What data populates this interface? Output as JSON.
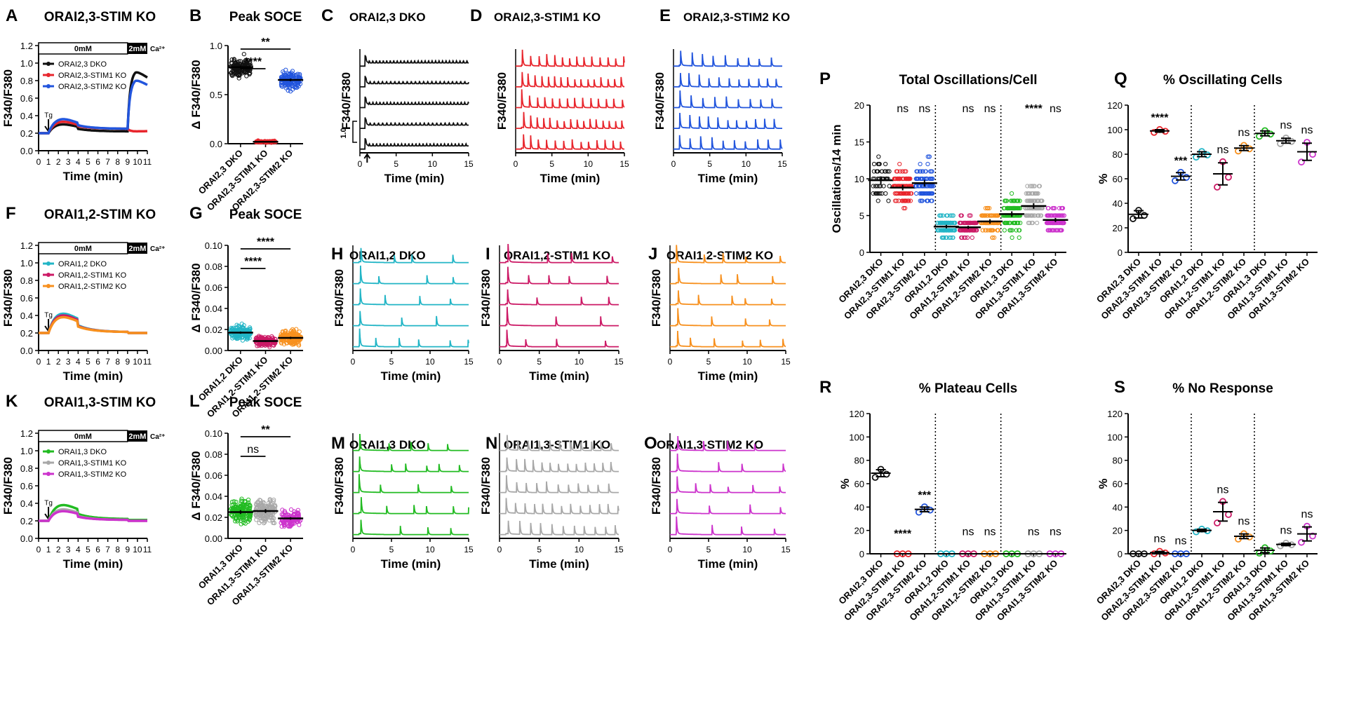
{
  "colors": {
    "black": "#111111",
    "red": "#e8262d",
    "blue": "#2255dd",
    "cyan": "#22b5c6",
    "magenta": "#cc1a66",
    "orange": "#f7901e",
    "green": "#22bb22",
    "gray": "#a8a8a8",
    "violet": "#cc33cc"
  },
  "chart_data": [
    {
      "id": "A",
      "type": "line",
      "letter": "A",
      "title": "ORAI2,3-STIM KO",
      "ylabel": "F340/F380",
      "xlabel": "Time (min)",
      "xlim": [
        0,
        11
      ],
      "ylim": [
        0,
        1.2
      ],
      "yticks": [
        "0.0",
        "0.2",
        "0.4",
        "0.6",
        "0.8",
        "1.0",
        "1.2"
      ],
      "xticks": [
        "0",
        "1",
        "2",
        "3",
        "4",
        "5",
        "6",
        "7",
        "8",
        "9",
        "10",
        "11"
      ],
      "bath": {
        "low": "0mM",
        "high": "2mM",
        "ion": "Ca²⁺"
      },
      "marker": "Tg",
      "series": [
        {
          "name": "ORAI2,3 DKO",
          "color": "black",
          "peak": 0.3,
          "tail": 0.22,
          "readd": 0.92
        },
        {
          "name": "ORAI2,3-STIM1 KO",
          "color": "red",
          "peak": 0.33,
          "tail": 0.25,
          "readd": 0.22
        },
        {
          "name": "ORAI2,3-STIM2 KO",
          "color": "blue",
          "peak": 0.36,
          "tail": 0.25,
          "readd": 0.82
        }
      ]
    },
    {
      "id": "F",
      "type": "line",
      "letter": "F",
      "title": "ORAI1,2-STIM KO",
      "ylabel": "F340/F380",
      "xlabel": "Time (min)",
      "xlim": [
        0,
        11
      ],
      "ylim": [
        0,
        1.2
      ],
      "yticks": [
        "0.0",
        "0.2",
        "0.4",
        "0.6",
        "0.8",
        "1.0",
        "1.2"
      ],
      "xticks": [
        "0",
        "1",
        "2",
        "3",
        "4",
        "5",
        "6",
        "7",
        "8",
        "9",
        "10",
        "11"
      ],
      "bath": {
        "low": "0mM",
        "high": "2mM",
        "ion": "Ca²⁺"
      },
      "marker": "Tg",
      "series": [
        {
          "name": "ORAI1,2 DKO",
          "color": "cyan",
          "peak": 0.42,
          "tail": 0.21
        },
        {
          "name": "ORAI1,2-STIM1 KO",
          "color": "magenta",
          "peak": 0.4,
          "tail": 0.21
        },
        {
          "name": "ORAI1,2-STIM2 KO",
          "color": "orange",
          "peak": 0.38,
          "tail": 0.21
        }
      ]
    },
    {
      "id": "K",
      "type": "line",
      "letter": "K",
      "title": "ORAI1,3-STIM KO",
      "ylabel": "F340/F380",
      "xlabel": "Time (min)",
      "xlim": [
        0,
        11
      ],
      "ylim": [
        0,
        1.2
      ],
      "yticks": [
        "0.0",
        "0.2",
        "0.4",
        "0.6",
        "0.8",
        "1.0",
        "1.2"
      ],
      "xticks": [
        "0",
        "1",
        "2",
        "3",
        "4",
        "5",
        "6",
        "7",
        "8",
        "9",
        "10",
        "11"
      ],
      "bath": {
        "low": "0mM",
        "high": "2mM",
        "ion": "Ca²⁺"
      },
      "marker": "Tg",
      "series": [
        {
          "name": "ORAI1,3 DKO",
          "color": "green",
          "peak": 0.38,
          "tail": 0.22
        },
        {
          "name": "ORAI1,3-STIM1 KO",
          "color": "gray",
          "peak": 0.33,
          "tail": 0.21
        },
        {
          "name": "ORAI1,3-STIM2 KO",
          "color": "violet",
          "peak": 0.31,
          "tail": 0.21
        }
      ]
    },
    {
      "id": "B",
      "type": "scatter",
      "letter": "B",
      "title": "Peak SOCE",
      "ylabel": "Δ F340/F380",
      "ylim": [
        0,
        1.0
      ],
      "yticks": [
        "0.0",
        "0.5",
        "1.0"
      ],
      "categories": [
        "ORAI2,3 DKO",
        "ORAI2,3-STIM1 KO",
        "ORAI2,3-STIM2 KO"
      ],
      "colors": [
        "black",
        "red",
        "blue"
      ],
      "means": [
        0.78,
        0.02,
        0.65
      ],
      "sd": [
        0.1,
        0.01,
        0.09
      ],
      "n": [
        140,
        60,
        140
      ],
      "sig": [
        {
          "from": 0,
          "to": 2,
          "label": "**"
        },
        {
          "from": 0,
          "to": 1,
          "label": "****"
        }
      ]
    },
    {
      "id": "G",
      "type": "scatter",
      "letter": "G",
      "title": "Peak SOCE",
      "ylabel": "Δ F340/F380",
      "ylim": [
        0,
        0.1
      ],
      "yticks": [
        "0.00",
        "0.02",
        "0.04",
        "0.06",
        "0.08",
        "0.10"
      ],
      "categories": [
        "ORAI1,2 DKO",
        "ORAI1,2-STIM1 KO",
        "ORAI1,2-STIM2 KO"
      ],
      "colors": [
        "cyan",
        "magenta",
        "orange"
      ],
      "means": [
        0.017,
        0.009,
        0.012
      ],
      "sd": [
        0.007,
        0.005,
        0.007
      ],
      "n": [
        150,
        150,
        150
      ],
      "sig": [
        {
          "from": 0,
          "to": 2,
          "label": "****"
        },
        {
          "from": 0,
          "to": 1,
          "label": "****"
        }
      ]
    },
    {
      "id": "L",
      "type": "scatter",
      "letter": "L",
      "title": "Peak SOCE",
      "ylabel": "Δ F340/F380",
      "ylim": [
        0,
        0.1
      ],
      "yticks": [
        "0.00",
        "0.02",
        "0.04",
        "0.06",
        "0.08",
        "0.10"
      ],
      "categories": [
        "ORAI1,3 DKO",
        "ORAI1,3-STIM1 KO",
        "ORAI1,3-STIM2 KO"
      ],
      "colors": [
        "green",
        "gray",
        "violet"
      ],
      "means": [
        0.025,
        0.026,
        0.019
      ],
      "sd": [
        0.012,
        0.012,
        0.008
      ],
      "n": [
        150,
        150,
        110
      ],
      "sig": [
        {
          "from": 0,
          "to": 2,
          "label": "**"
        },
        {
          "from": 0,
          "to": 1,
          "label": "ns"
        }
      ]
    },
    {
      "id": "C",
      "type": "traces",
      "letter": "C",
      "title": "ORAI2,3 DKO",
      "color": "black",
      "style": "dense",
      "period": 0.48,
      "amp": 0.55,
      "ylabel": "F340/F380",
      "xlabel": "Time (min)",
      "xticks": [
        "0",
        "5",
        "10",
        "15"
      ],
      "xlim": [
        0,
        15
      ],
      "scalebar": "1.0"
    },
    {
      "id": "D",
      "type": "traces",
      "letter": "D",
      "title": "ORAI2,3-STIM1 KO",
      "color": "red",
      "style": "regular",
      "period": 1.0,
      "amp": 0.8,
      "ylabel": "F340/F380",
      "xlabel": "Time (min)",
      "xticks": [
        "0",
        "5",
        "10",
        "15"
      ],
      "xlim": [
        0,
        15
      ]
    },
    {
      "id": "E",
      "type": "traces",
      "letter": "E",
      "title": "ORAI2,3-STIM2 KO",
      "color": "blue",
      "style": "regular",
      "period": 1.35,
      "amp": 0.8,
      "ylabel": "F340/F380",
      "xlabel": "Time (min)",
      "xticks": [
        "0",
        "5",
        "10",
        "15"
      ],
      "xlim": [
        0,
        15
      ]
    },
    {
      "id": "H",
      "type": "traces",
      "letter": "H",
      "title": "ORAI1,2 DKO",
      "color": "cyan",
      "style": "sparse",
      "period": 3.5,
      "amp": 0.8,
      "ylabel": "F340/F380",
      "xlabel": "Time (min)",
      "xticks": [
        "0",
        "5",
        "10",
        "15"
      ],
      "xlim": [
        0,
        15
      ]
    },
    {
      "id": "I",
      "type": "traces",
      "letter": "I",
      "title": "ORAI1,2-STIM1 KO",
      "color": "magenta",
      "style": "sparse",
      "period": 3.8,
      "amp": 0.8,
      "ylabel": "F340/F380",
      "xlabel": "Time (min)",
      "xticks": [
        "0",
        "5",
        "10",
        "15"
      ],
      "xlim": [
        0,
        15
      ]
    },
    {
      "id": "J",
      "type": "traces",
      "letter": "J",
      "title": "ORAI1,2-STIM2 KO",
      "color": "orange",
      "style": "sparse",
      "period": 2.6,
      "amp": 0.8,
      "ylabel": "F340/F380",
      "xlabel": "Time (min)",
      "xticks": [
        "0",
        "5",
        "10",
        "15"
      ],
      "xlim": [
        0,
        15
      ]
    },
    {
      "id": "M",
      "type": "traces",
      "letter": "M",
      "title": "ORAI1,3 DKO",
      "color": "green",
      "style": "sparse",
      "period": 2.6,
      "amp": 0.8,
      "ylabel": "F340/F380",
      "xlabel": "Time (min)",
      "xticks": [
        "0",
        "5",
        "10",
        "15"
      ],
      "xlim": [
        0,
        15
      ]
    },
    {
      "id": "N",
      "type": "traces",
      "letter": "N",
      "title": "ORAI1,3-STIM1 KO",
      "color": "gray",
      "style": "regular",
      "period": 1.15,
      "amp": 0.8,
      "ylabel": "F340/F380",
      "xlabel": "Time (min)",
      "xticks": [
        "0",
        "5",
        "10",
        "15"
      ],
      "xlim": [
        0,
        15
      ]
    },
    {
      "id": "O",
      "type": "traces",
      "letter": "O",
      "title": "ORAI1,3-STIM2 KO",
      "color": "violet",
      "style": "sparse",
      "period": 3.0,
      "amp": 0.8,
      "ylabel": "F340/F380",
      "xlabel": "Time (min)",
      "xticks": [
        "0",
        "5",
        "10",
        "15"
      ],
      "xlim": [
        0,
        15
      ]
    },
    {
      "id": "P",
      "type": "scatter",
      "letter": "P",
      "title": "Total Oscillations/Cell",
      "ylabel": "Oscillations/14 min",
      "ylim": [
        0,
        20
      ],
      "yticks": [
        "0",
        "5",
        "10",
        "15",
        "20"
      ],
      "categories": [
        "ORAI2,3 DKO",
        "ORAI2,3-STIM1 KO",
        "ORAI2,3-STIM2 KO",
        "ORAI1,2 DKO",
        "ORAI1,2-STIM1 KO",
        "ORAI1,2-STIM2 KO",
        "ORAI1,3 DKO",
        "ORAI1,3-STIM1 KO",
        "ORAI1,3-STIM2 KO"
      ],
      "colors": [
        "black",
        "red",
        "blue",
        "cyan",
        "magenta",
        "orange",
        "green",
        "gray",
        "violet"
      ],
      "means": [
        9.8,
        8.8,
        9.4,
        3.5,
        3.4,
        4.2,
        5.2,
        6.3,
        4.4
      ],
      "sd": [
        3.5,
        2.5,
        3,
        1.6,
        1.4,
        2,
        2.5,
        2.5,
        1.8
      ],
      "n": [
        50,
        150,
        110,
        130,
        110,
        110,
        130,
        130,
        120
      ],
      "labels": [
        "",
        "ns",
        "ns",
        "",
        "ns",
        "ns",
        "",
        "****",
        "ns"
      ],
      "dividers": [
        2.5,
        5.5
      ],
      "integer": true
    },
    {
      "id": "Q",
      "type": "dots",
      "letter": "Q",
      "title": "% Oscillating Cells",
      "ylabel": "%",
      "ylim": [
        0,
        120
      ],
      "yticks": [
        "0",
        "20",
        "40",
        "60",
        "80",
        "100",
        "120"
      ],
      "categories": [
        "ORAI2,3 DKO",
        "ORAI2,3-STIM1 KO",
        "ORAI2,3-STIM2 KO",
        "ORAI1,2 DKO",
        "ORAI1,2-STIM1 KO",
        "ORAI1,2-STIM2 KO",
        "ORAI1,3 DKO",
        "ORAI1,3-STIM1 KO",
        "ORAI1,3-STIM2 KO"
      ],
      "colors": [
        "black",
        "red",
        "blue",
        "cyan",
        "magenta",
        "orange",
        "green",
        "gray",
        "violet"
      ],
      "means": [
        31,
        99,
        62,
        80,
        64,
        85,
        97,
        91,
        82
      ],
      "sem": [
        3,
        1,
        3,
        2,
        9,
        2,
        2,
        2,
        7
      ],
      "labels": [
        "",
        "****",
        "***",
        "",
        "ns",
        "ns",
        "",
        "ns",
        "ns"
      ],
      "dividers": [
        2.5,
        5.5
      ]
    },
    {
      "id": "R",
      "type": "dots",
      "letter": "R",
      "title": "% Plateau Cells",
      "ylabel": "%",
      "ylim": [
        0,
        120
      ],
      "yticks": [
        "0",
        "20",
        "40",
        "60",
        "80",
        "100",
        "120"
      ],
      "categories": [
        "ORAI2,3 DKO",
        "ORAI2,3-STIM1 KO",
        "ORAI2,3-STIM2 KO",
        "ORAI1,2 DKO",
        "ORAI1,2-STIM1 KO",
        "ORAI1,2-STIM2 KO",
        "ORAI1,3 DKO",
        "ORAI1,3-STIM1 KO",
        "ORAI1,3-STIM2 KO"
      ],
      "colors": [
        "black",
        "red",
        "blue",
        "cyan",
        "magenta",
        "orange",
        "green",
        "gray",
        "violet"
      ],
      "means": [
        69,
        0,
        38,
        0,
        0,
        0,
        0,
        0,
        0
      ],
      "sem": [
        3,
        0,
        2,
        0,
        0,
        0,
        0,
        0,
        0
      ],
      "labels": [
        "",
        "****",
        "***",
        "",
        "ns",
        "ns",
        "",
        "ns",
        "ns"
      ],
      "dividers": [
        2.5,
        5.5
      ]
    },
    {
      "id": "S",
      "type": "dots",
      "letter": "S",
      "title": "% No Response",
      "ylabel": "%",
      "ylim": [
        0,
        120
      ],
      "yticks": [
        "0",
        "20",
        "40",
        "60",
        "80",
        "100",
        "120"
      ],
      "categories": [
        "ORAI2,3 DKO",
        "ORAI2,3-STIM1 KO",
        "ORAI2,3-STIM2 KO",
        "ORAI1,2 DKO",
        "ORAI1,2-STIM1 KO",
        "ORAI1,2-STIM2 KO",
        "ORAI1,3 DKO",
        "ORAI1,3-STIM1 KO",
        "ORAI1,3-STIM2 KO"
      ],
      "colors": [
        "black",
        "red",
        "blue",
        "cyan",
        "magenta",
        "orange",
        "green",
        "gray",
        "violet"
      ],
      "means": [
        0,
        1,
        0,
        20,
        36,
        15,
        3,
        8,
        17
      ],
      "sem": [
        0,
        1,
        0,
        1,
        8,
        2,
        2,
        1,
        6
      ],
      "labels": [
        "",
        "ns",
        "ns",
        "",
        "ns",
        "ns",
        "",
        "ns",
        "ns"
      ],
      "dividers": [
        2.5,
        5.5
      ]
    }
  ]
}
